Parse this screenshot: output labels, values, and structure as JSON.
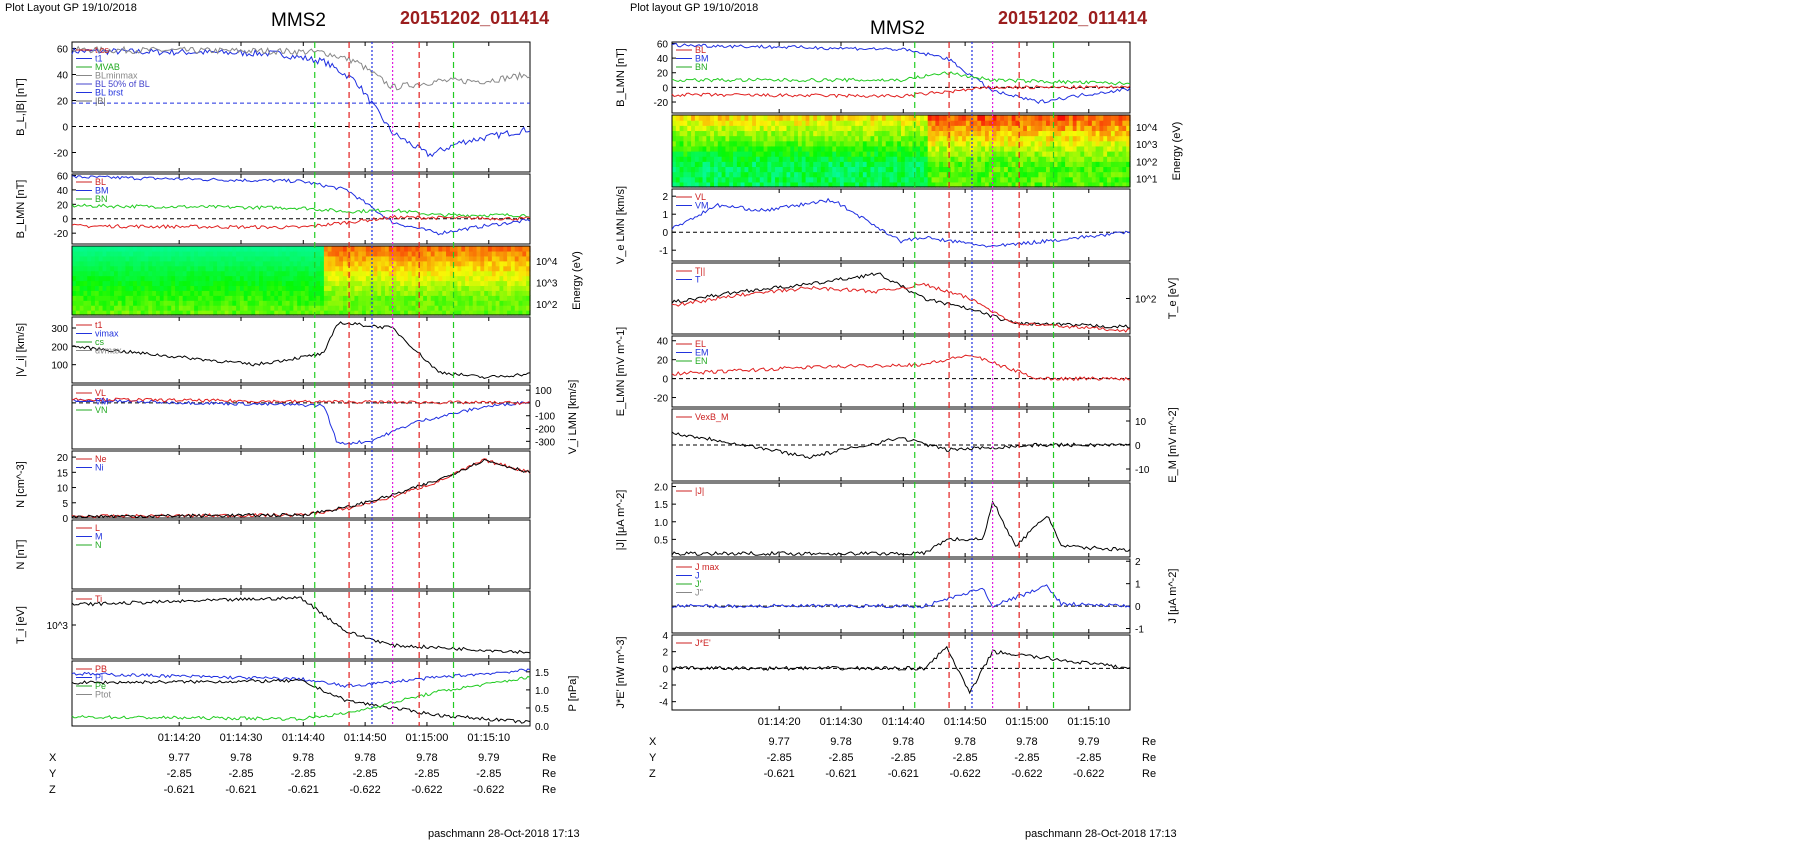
{
  "left": {
    "header": "Plot Layout GP 19/10/2018",
    "spacecraft": "MMS2",
    "event": "20151202_011414",
    "footer": "paschmann 28-Oct-2018 17:13"
  },
  "right": {
    "header": "Plot layout GP 19/10/2018",
    "spacecraft": "MMS2",
    "event": "20151202_011414",
    "footer": "paschmann 28-Oct-2018 17:13"
  },
  "time_ticks": [
    "01:14:20",
    "01:14:30",
    "01:14:40",
    "01:14:50",
    "01:15:00",
    "01:15:10"
  ],
  "ephemeris": {
    "unit": "Re",
    "rows": [
      {
        "label": "X",
        "values": [
          "9.77",
          "9.78",
          "9.78",
          "9.78",
          "9.78",
          "9.79"
        ]
      },
      {
        "label": "Y",
        "values": [
          "-2.85",
          "-2.85",
          "-2.85",
          "-2.85",
          "-2.85",
          "-2.85"
        ]
      },
      {
        "label": "Z",
        "values": [
          "-0.621",
          "-0.621",
          "-0.621",
          "-0.622",
          "-0.622",
          "-0.622"
        ]
      }
    ]
  },
  "colors": {
    "blue": "#1f2fe0",
    "red": "#e02020",
    "green": "#22cc22",
    "magenta": "#e020e0",
    "gray": "#888888",
    "black": "#000000"
  },
  "chart_data": [
    {
      "type": "line",
      "title": "",
      "ylabel": "B_L,|B| [nT]",
      "ylim": [
        -35,
        65
      ],
      "yticks": [
        "-20",
        "0",
        "20",
        "40",
        "60"
      ],
      "legend": [
        "t cs",
        "t1",
        "MVAB",
        "BLminmax",
        "BL 50% of BL",
        "BL brst",
        "|B|"
      ],
      "series": [
        {
          "name": "BL brst",
          "color": "blue",
          "x": [
            0,
            0.3,
            0.45,
            0.55,
            0.62,
            0.7,
            0.78,
            0.85,
            1
          ],
          "values": [
            58,
            57,
            56,
            50,
            35,
            -5,
            -22,
            -12,
            -2
          ]
        },
        {
          "name": "|B|",
          "color": "gray",
          "x": [
            0,
            0.45,
            0.55,
            0.62,
            0.7,
            0.8,
            0.9,
            1
          ],
          "values": [
            59,
            58,
            57,
            50,
            30,
            35,
            35,
            40
          ]
        }
      ],
      "hlines": [
        18,
        0
      ]
    },
    {
      "type": "line",
      "title": "",
      "ylabel": "B_LMN [nT]",
      "ylim": [
        -35,
        62
      ],
      "yticks": [
        "-20",
        "0",
        "20",
        "40",
        "60"
      ],
      "legend": [
        "BL",
        "BM",
        "BN"
      ],
      "series": [
        {
          "name": "BL",
          "color": "blue",
          "x": [
            0,
            0.5,
            0.6,
            0.7,
            0.8,
            0.9,
            1
          ],
          "values": [
            58,
            52,
            40,
            -5,
            -20,
            -10,
            -2
          ]
        },
        {
          "name": "BM",
          "color": "green",
          "x": [
            0,
            0.5,
            0.6,
            0.7,
            0.8,
            1
          ],
          "values": [
            18,
            15,
            10,
            12,
            5,
            5
          ]
        },
        {
          "name": "BN",
          "color": "red",
          "x": [
            0,
            0.5,
            0.7,
            1
          ],
          "values": [
            -10,
            -12,
            2,
            0
          ]
        }
      ]
    },
    {
      "type": "heatmap",
      "ylabel": "Energy (eV)",
      "yticks": [
        "10^4",
        "10^3",
        "10^2"
      ]
    },
    {
      "type": "line",
      "title": "",
      "ylabel": "|V_i| [km/s]",
      "ylim": [
        0,
        360
      ],
      "yticks": [
        "100",
        "200",
        "300"
      ],
      "legend": [
        "t1",
        "vimax",
        "cs",
        "dvmax"
      ],
      "series": [
        {
          "name": "",
          "color": "black",
          "x": [
            0,
            0.2,
            0.4,
            0.55,
            0.58,
            0.7,
            0.8,
            0.9,
            1
          ],
          "values": [
            200,
            150,
            100,
            160,
            330,
            300,
            60,
            30,
            50
          ]
        }
      ]
    },
    {
      "type": "line",
      "title": "",
      "ylabel": "V_i LMN [km/s]",
      "ylim": [
        -360,
        140
      ],
      "yticks": [
        "100",
        "0",
        "-100",
        "-200",
        "-300"
      ],
      "legend": [
        "VL",
        "VM",
        "VN"
      ],
      "series": [
        {
          "name": "VL",
          "color": "blue",
          "x": [
            0,
            0.55,
            0.58,
            0.65,
            0.75,
            0.9,
            1
          ],
          "values": [
            20,
            -20,
            -320,
            -300,
            -150,
            -30,
            10
          ]
        },
        {
          "name": "VN",
          "color": "red",
          "x": [
            0,
            0.5,
            1
          ],
          "values": [
            30,
            10,
            0
          ]
        }
      ]
    },
    {
      "type": "line",
      "title": "",
      "ylabel": "N [cm^-3]",
      "ylim": [
        0,
        22
      ],
      "yticks": [
        "0",
        "5",
        "10",
        "15",
        "20"
      ],
      "legend": [
        "Ne",
        "Ni"
      ],
      "series": [
        {
          "name": "Ne",
          "color": "red",
          "x": [
            0,
            0.5,
            0.6,
            0.7,
            0.8,
            0.9,
            1
          ],
          "values": [
            0.5,
            1,
            3,
            7,
            12,
            19,
            15
          ]
        },
        {
          "name": "Ni",
          "color": "black",
          "x": [
            0,
            0.5,
            0.6,
            0.7,
            0.8,
            0.9,
            1
          ],
          "values": [
            0.5,
            1,
            3.5,
            7.5,
            12.5,
            19,
            15
          ]
        }
      ]
    },
    {
      "type": "line",
      "ylabel": "N [nT]",
      "legend": [
        "L",
        "M",
        "N"
      ]
    },
    {
      "type": "line",
      "title": "",
      "ylabel": "T_i [eV]",
      "ylim": [
        0,
        1
      ],
      "yticks": [
        "10^3"
      ],
      "legend": [
        "Ti"
      ],
      "series": [
        {
          "name": "Ti",
          "color": "black",
          "x": [
            0,
            0.5,
            0.6,
            0.7,
            1
          ],
          "values": [
            0.8,
            0.9,
            0.4,
            0.2,
            0.1
          ]
        }
      ]
    },
    {
      "type": "line",
      "title": "",
      "ylabel": "P [nPa]",
      "ylim": [
        0,
        1.8
      ],
      "yticks": [
        "0.0",
        "0.5",
        "1.0",
        "1.5"
      ],
      "legend": [
        "PB",
        "Pi",
        "Pe",
        "Ptot"
      ],
      "series": [
        {
          "name": "Ptot",
          "color": "blue",
          "x": [
            0,
            0.5,
            0.6,
            0.8,
            1
          ],
          "values": [
            1.45,
            1.3,
            1.1,
            1.35,
            1.55
          ]
        },
        {
          "name": "Pi",
          "color": "black",
          "x": [
            0,
            0.5,
            0.6,
            0.8,
            1
          ],
          "values": [
            1.2,
            1.25,
            0.7,
            0.3,
            0.1
          ]
        },
        {
          "name": "PB",
          "color": "green",
          "x": [
            0,
            0.5,
            0.6,
            0.8,
            1
          ],
          "values": [
            0.25,
            0.2,
            0.35,
            0.95,
            1.35
          ]
        }
      ]
    },
    {
      "type": "line",
      "title": "",
      "ylabel": "B_LMN [nT]",
      "ylim": [
        -35,
        62
      ],
      "yticks": [
        "-20",
        "0",
        "20",
        "40",
        "60"
      ],
      "legend": [
        "BL",
        "BM",
        "BN"
      ],
      "series": [
        {
          "name": "BL",
          "color": "blue",
          "x": [
            0,
            0.5,
            0.6,
            0.7,
            0.8,
            0.9,
            1
          ],
          "values": [
            58,
            52,
            40,
            -5,
            -20,
            -10,
            -2
          ]
        },
        {
          "name": "BM",
          "color": "green",
          "x": [
            0,
            0.5,
            0.6,
            0.7,
            1
          ],
          "values": [
            10,
            10,
            20,
            10,
            5
          ]
        },
        {
          "name": "BN",
          "color": "red",
          "x": [
            0,
            0.5,
            0.7,
            1
          ],
          "values": [
            -10,
            -12,
            0,
            0
          ]
        }
      ]
    },
    {
      "type": "heatmap",
      "ylabel": "Energy (eV)",
      "yticks": [
        "10^4",
        "10^3",
        "10^2",
        "10^1"
      ]
    },
    {
      "type": "line",
      "title": "",
      "ylabel": "V_e LMN [km/s]",
      "ylim": [
        -1.6,
        2.4
      ],
      "yticks": [
        "2",
        "1",
        "0",
        "-1"
      ],
      "legend": [
        "VL",
        "VM"
      ],
      "series": [
        {
          "name": "VL",
          "color": "blue",
          "x": [
            0,
            0.1,
            0.2,
            0.35,
            0.5,
            0.55,
            0.7,
            1
          ],
          "values": [
            0.2,
            1.5,
            1.2,
            1.8,
            -0.5,
            -0.3,
            -0.8,
            0
          ]
        }
      ]
    },
    {
      "type": "line",
      "title": "",
      "ylabel": "T_e [eV]",
      "ylim": [
        0,
        1
      ],
      "yticks": [
        "10^2"
      ],
      "legend": [
        "T||",
        "T"
      ],
      "series": [
        {
          "name": "T",
          "color": "black",
          "x": [
            0,
            0.15,
            0.3,
            0.45,
            0.55,
            0.65,
            0.75,
            1
          ],
          "values": [
            0.45,
            0.6,
            0.7,
            0.85,
            0.5,
            0.35,
            0.15,
            0.1
          ]
        },
        {
          "name": "T||",
          "color": "red",
          "x": [
            0,
            0.15,
            0.3,
            0.45,
            0.55,
            0.65,
            0.75,
            1
          ],
          "values": [
            0.4,
            0.55,
            0.65,
            0.6,
            0.7,
            0.5,
            0.15,
            0.05
          ]
        }
      ]
    },
    {
      "type": "line",
      "title": "",
      "ylabel": "E_LMN [mV m^-1]",
      "ylim": [
        -30,
        45
      ],
      "yticks": [
        "40",
        "20",
        "0",
        "-20"
      ],
      "legend": [
        "EL",
        "EM",
        "EN"
      ],
      "series": [
        {
          "name": "EN",
          "color": "red",
          "x": [
            0,
            0.3,
            0.55,
            0.65,
            0.8,
            1
          ],
          "values": [
            5,
            12,
            15,
            25,
            0,
            0
          ]
        }
      ]
    },
    {
      "type": "line",
      "title": "",
      "ylabel": "E_M [mV m^-2]",
      "ylim": [
        -15,
        15
      ],
      "yticks": [
        "10",
        "0",
        "-10"
      ],
      "legend": [
        "VexB_M"
      ],
      "series": [
        {
          "name": "VexB_M",
          "color": "black",
          "x": [
            0,
            0.1,
            0.3,
            0.5,
            0.6,
            0.8,
            1
          ],
          "values": [
            5,
            2,
            -5,
            3,
            -2,
            0,
            0
          ]
        }
      ]
    },
    {
      "type": "line",
      "title": "",
      "ylabel": "|J| [μA m^-2]",
      "ylim": [
        0,
        2.1
      ],
      "yticks": [
        "2.0",
        "1.5",
        "1.0",
        "0.5"
      ],
      "legend": [
        "|J|"
      ],
      "series": [
        {
          "name": "|J|",
          "color": "black",
          "x": [
            0,
            0.55,
            0.6,
            0.68,
            0.7,
            0.75,
            0.82,
            0.85,
            1
          ],
          "values": [
            0.1,
            0.1,
            0.5,
            0.5,
            1.6,
            0.3,
            1.2,
            0.3,
            0.2
          ]
        }
      ]
    },
    {
      "type": "line",
      "title": "",
      "ylabel": "J [μA m^-2]",
      "ylim": [
        -1.2,
        2.1
      ],
      "yticks": [
        "2",
        "1",
        "0",
        "-1"
      ],
      "legend": [
        "J max",
        "J",
        "J'",
        "J''"
      ],
      "series": [
        {
          "name": "J",
          "color": "blue",
          "x": [
            0,
            0.55,
            0.68,
            0.7,
            0.82,
            0.85,
            1
          ],
          "values": [
            0,
            0,
            0.8,
            0,
            0.9,
            0.1,
            0
          ]
        }
      ]
    },
    {
      "type": "line",
      "title": "",
      "ylabel": "J*E' [nW m^-3]",
      "ylim": [
        -5,
        4
      ],
      "yticks": [
        "4",
        "2",
        "0",
        "-2",
        "-4"
      ],
      "legend": [
        "J*E'"
      ],
      "series": [
        {
          "name": "J*E'",
          "color": "black",
          "x": [
            0,
            0.55,
            0.6,
            0.65,
            0.7,
            1
          ],
          "values": [
            0,
            0,
            2.5,
            -3,
            2,
            0
          ]
        }
      ]
    }
  ]
}
